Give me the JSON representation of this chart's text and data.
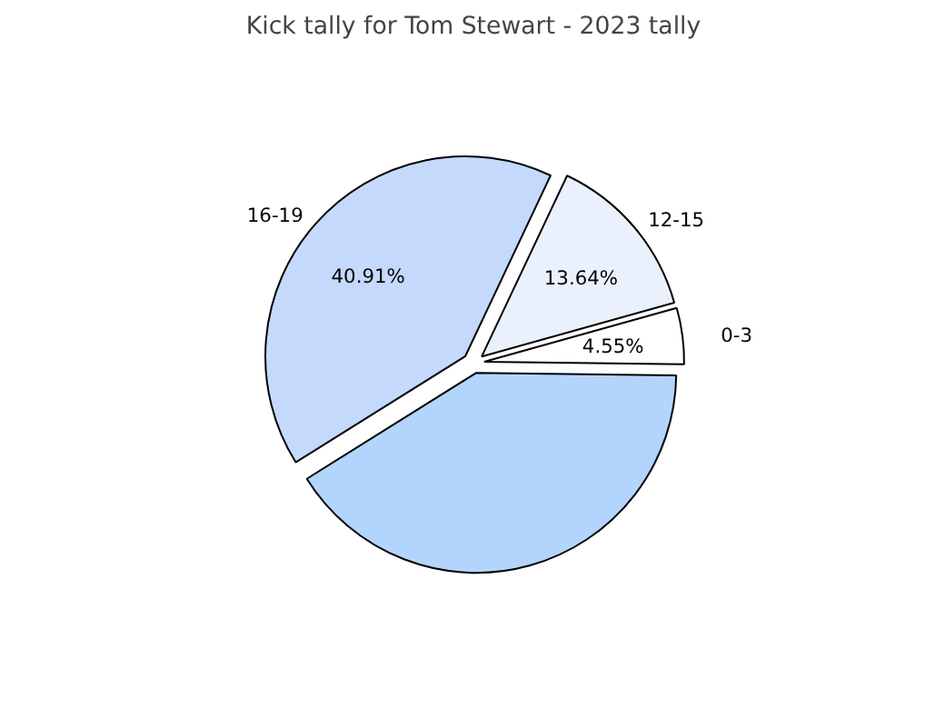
{
  "chart_data": {
    "type": "pie",
    "title": "Kick tally for Tom Stewart - 2023 tally",
    "categories": [
      "16-19",
      "12-15",
      "0-3",
      null
    ],
    "values": [
      40.91,
      13.64,
      4.55,
      40.9
    ],
    "colors": [
      "#c5d9fd",
      "#eaf1fd",
      "#ffffff",
      "#b3d5fd"
    ],
    "value_labels": [
      "40.91%",
      "13.64%",
      "4.55%",
      null
    ]
  }
}
